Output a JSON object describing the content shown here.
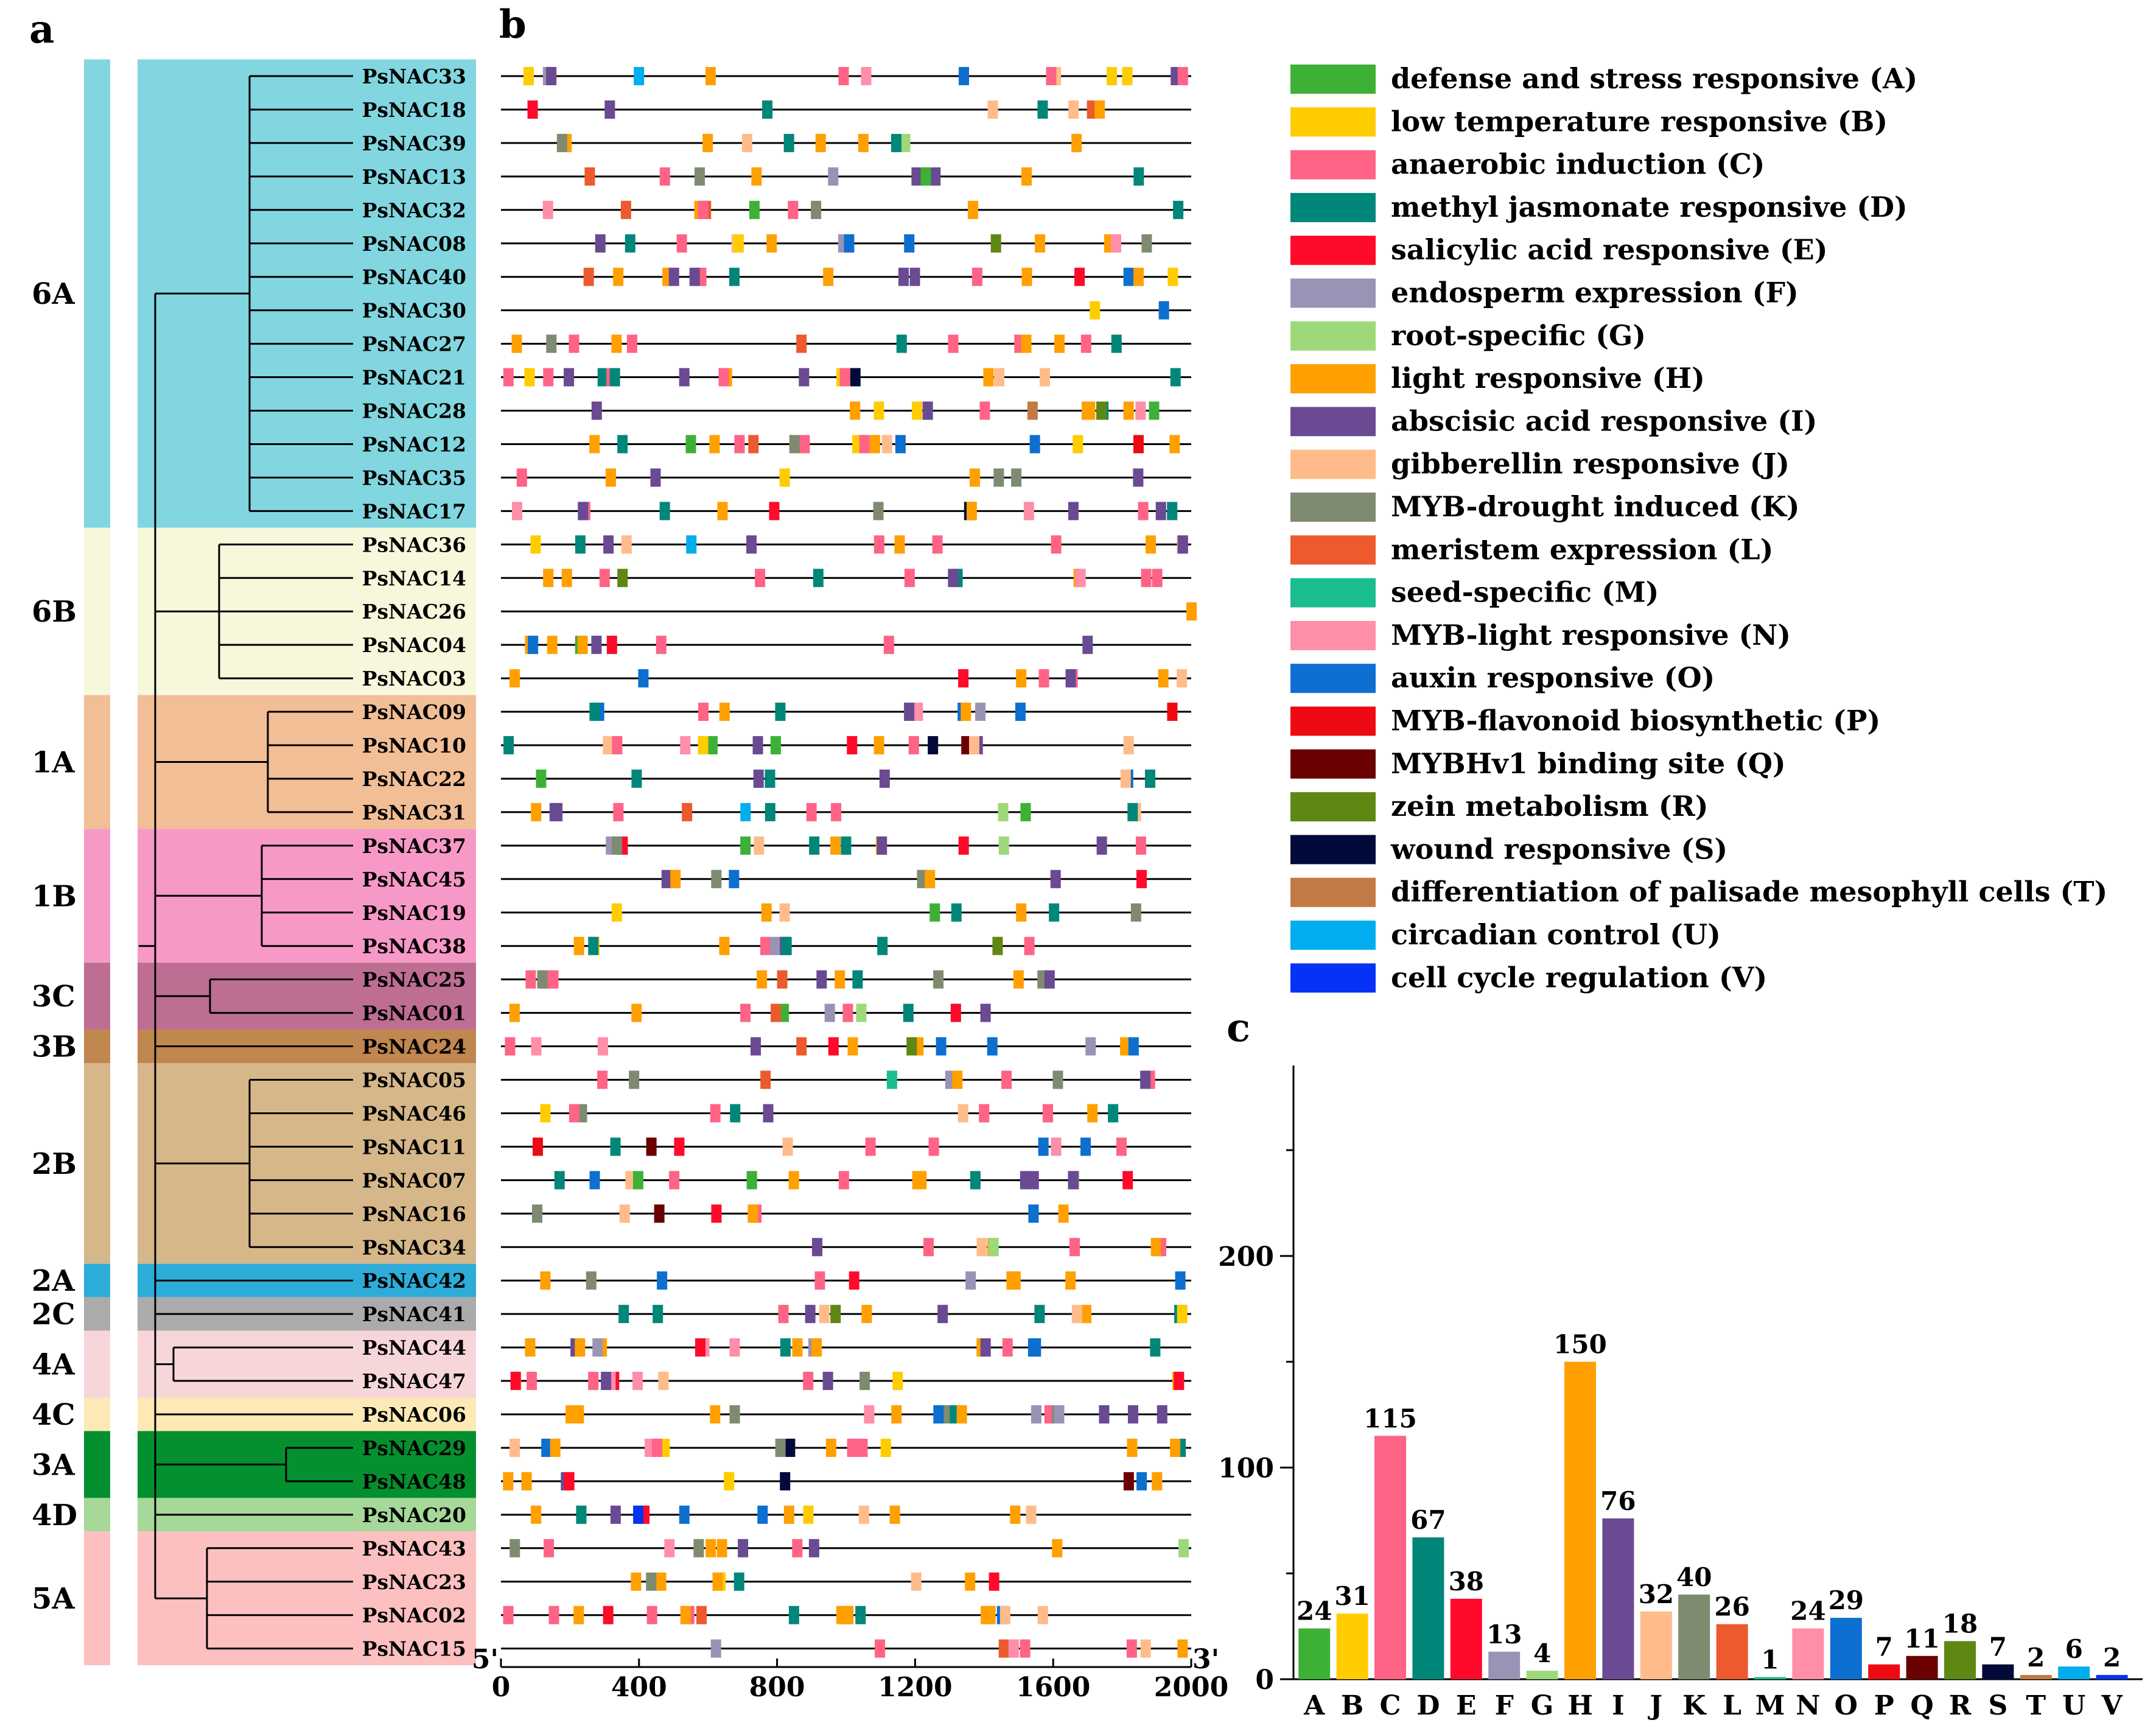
{
  "panels": {
    "a": "a",
    "b": "b",
    "c": "c"
  },
  "genes": [
    "PsNAC33",
    "PsNAC18",
    "PsNAC39",
    "PsNAC13",
    "PsNAC32",
    "PsNAC08",
    "PsNAC40",
    "PsNAC30",
    "PsNAC27",
    "PsNAC21",
    "PsNAC28",
    "PsNAC12",
    "PsNAC35",
    "PsNAC17",
    "PsNAC36",
    "PsNAC14",
    "PsNAC26",
    "PsNAC04",
    "PsNAC03",
    "PsNAC09",
    "PsNAC10",
    "PsNAC22",
    "PsNAC31",
    "PsNAC37",
    "PsNAC45",
    "PsNAC19",
    "PsNAC38",
    "PsNAC25",
    "PsNAC01",
    "PsNAC24",
    "PsNAC05",
    "PsNAC46",
    "PsNAC11",
    "PsNAC07",
    "PsNAC16",
    "PsNAC34",
    "PsNAC42",
    "PsNAC41",
    "PsNAC44",
    "PsNAC47",
    "PsNAC06",
    "PsNAC29",
    "PsNAC48",
    "PsNAC20",
    "PsNAC43",
    "PsNAC23",
    "PsNAC02",
    "PsNAC15"
  ],
  "clades": [
    {
      "label": "6A",
      "first": 0,
      "last": 13,
      "color": "#82D6E0"
    },
    {
      "label": "6B",
      "first": 14,
      "last": 18,
      "color": "#F7F7DC"
    },
    {
      "label": "1A",
      "first": 19,
      "last": 22,
      "color": "#F2BE96"
    },
    {
      "label": "1B",
      "first": 23,
      "last": 26,
      "color": "#F799C6"
    },
    {
      "label": "3C",
      "first": 27,
      "last": 28,
      "color": "#BE6E92"
    },
    {
      "label": "3B",
      "first": 29,
      "last": 29,
      "color": "#C0874F"
    },
    {
      "label": "2B",
      "first": 30,
      "last": 35,
      "color": "#D6B78A"
    },
    {
      "label": "2A",
      "first": 36,
      "last": 36,
      "color": "#2EACD9"
    },
    {
      "label": "2C",
      "first": 37,
      "last": 37,
      "color": "#ABABAB"
    },
    {
      "label": "4A",
      "first": 38,
      "last": 39,
      "color": "#F7D6DA"
    },
    {
      "label": "4C",
      "first": 40,
      "last": 40,
      "color": "#FDE9B5"
    },
    {
      "label": "3A",
      "first": 41,
      "last": 42,
      "color": "#05902F"
    },
    {
      "label": "4D",
      "first": 43,
      "last": 43,
      "color": "#A6D89A"
    },
    {
      "label": "5A",
      "first": 44,
      "last": 47,
      "color": "#FCC0C0"
    }
  ],
  "motifs": [
    {
      "code": "A",
      "label": "defense and stress responsive (A)",
      "color": "#3DB135",
      "count": 24
    },
    {
      "code": "B",
      "label": "low temperature responsive (B)",
      "color": "#FFCC00",
      "count": 31
    },
    {
      "code": "C",
      "label": "anaerobic induction (C)",
      "color": "#FF6386",
      "count": 115
    },
    {
      "code": "D",
      "label": "methyl jasmonate responsive (D)",
      "color": "#00877A",
      "count": 67
    },
    {
      "code": "E",
      "label": "salicylic acid responsive (E)",
      "color": "#FF0A2A",
      "count": 38
    },
    {
      "code": "F",
      "label": "endosperm expression (F)",
      "color": "#9B93B5",
      "count": 13
    },
    {
      "code": "G",
      "label": "root-specific (G)",
      "color": "#9DD97A",
      "count": 4
    },
    {
      "code": "H",
      "label": "light responsive (H)",
      "color": "#FFA000",
      "count": 150
    },
    {
      "code": "I",
      "label": "abscisic acid responsive (I)",
      "color": "#6A4A93",
      "count": 76
    },
    {
      "code": "J",
      "label": "gibberellin responsive (J)",
      "color": "#FFBC8A",
      "count": 32
    },
    {
      "code": "K",
      "label": "MYB-drought induced (K)",
      "color": "#7E8B70",
      "count": 40
    },
    {
      "code": "L",
      "label": "meristem expression (L)",
      "color": "#EC5A2D",
      "count": 26
    },
    {
      "code": "M",
      "label": "seed-specific (M)",
      "color": "#1ABD8F",
      "count": 1
    },
    {
      "code": "N",
      "label": "MYB-light responsive (N)",
      "color": "#FF8EA8",
      "count": 24
    },
    {
      "code": "O",
      "label": "auxin responsive (O)",
      "color": "#0D6FD0",
      "count": 29
    },
    {
      "code": "P",
      "label": "MYB-flavonoid biosynthetic (P)",
      "color": "#EE0A13",
      "count": 7
    },
    {
      "code": "Q",
      "label": "MYBHv1 binding site (Q)",
      "color": "#6A0000",
      "count": 11
    },
    {
      "code": "R",
      "label": "zein metabolism (R)",
      "color": "#5F8713",
      "count": 18
    },
    {
      "code": "S",
      "label": "wound responsive (S)",
      "color": "#020A3A",
      "count": 7
    },
    {
      "code": "T",
      "label": "differentiation of palisade mesophyll cells (T)",
      "color": "#C27A44",
      "count": 2
    },
    {
      "code": "U",
      "label": "circadian control (U)",
      "color": "#00ADEF",
      "count": 6
    },
    {
      "code": "V",
      "label": "cell cycle regulation (V)",
      "color": "#0632F5",
      "count": 2
    }
  ],
  "promoter": {
    "five_prime": "5'",
    "three_prime": "3'",
    "xmin": 0,
    "xmax": 2000,
    "ticks": [
      0,
      400,
      800,
      1200,
      1600,
      2000
    ]
  },
  "chart_data": {
    "type": "bar",
    "title": "",
    "xlabel": "",
    "ylabel": "",
    "categories": [
      "A",
      "B",
      "C",
      "D",
      "E",
      "F",
      "G",
      "H",
      "I",
      "J",
      "K",
      "L",
      "M",
      "N",
      "O",
      "P",
      "Q",
      "R",
      "S",
      "T",
      "U",
      "V"
    ],
    "values": [
      24,
      31,
      115,
      67,
      38,
      13,
      4,
      150,
      76,
      32,
      40,
      26,
      1,
      24,
      29,
      7,
      11,
      18,
      7,
      2,
      6,
      2
    ],
    "ylim": [
      0,
      290
    ],
    "yticks": [
      0,
      100,
      200
    ],
    "grid": false
  }
}
